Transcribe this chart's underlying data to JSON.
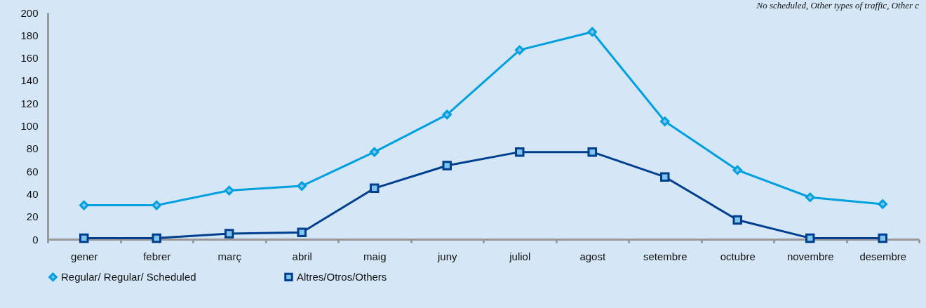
{
  "chart_data": {
    "type": "line",
    "categories": [
      "gener",
      "febrer",
      "març",
      "abril",
      "maig",
      "juny",
      "juliol",
      "agost",
      "setembre",
      "octubre",
      "novembre",
      "desembre"
    ],
    "series": [
      {
        "name": "Regular/ Regular/ Scheduled",
        "color": "#00a0e0",
        "marker": "diamond",
        "values": [
          30,
          30,
          43,
          47,
          77,
          110,
          167,
          183,
          104,
          61,
          37,
          31
        ]
      },
      {
        "name": "Altres/Otros/Others",
        "color": "#003f8f",
        "marker": "square",
        "values": [
          1,
          1,
          5,
          6,
          45,
          65,
          77,
          77,
          55,
          17,
          1,
          1
        ]
      }
    ],
    "ylim": [
      0,
      200
    ],
    "yticks": [
      0,
      20,
      40,
      60,
      80,
      100,
      120,
      140,
      160,
      180,
      200
    ],
    "grid": false,
    "legend": "bottom",
    "annotations": [
      "No scheduled, Other types of traffic, Other c"
    ]
  }
}
